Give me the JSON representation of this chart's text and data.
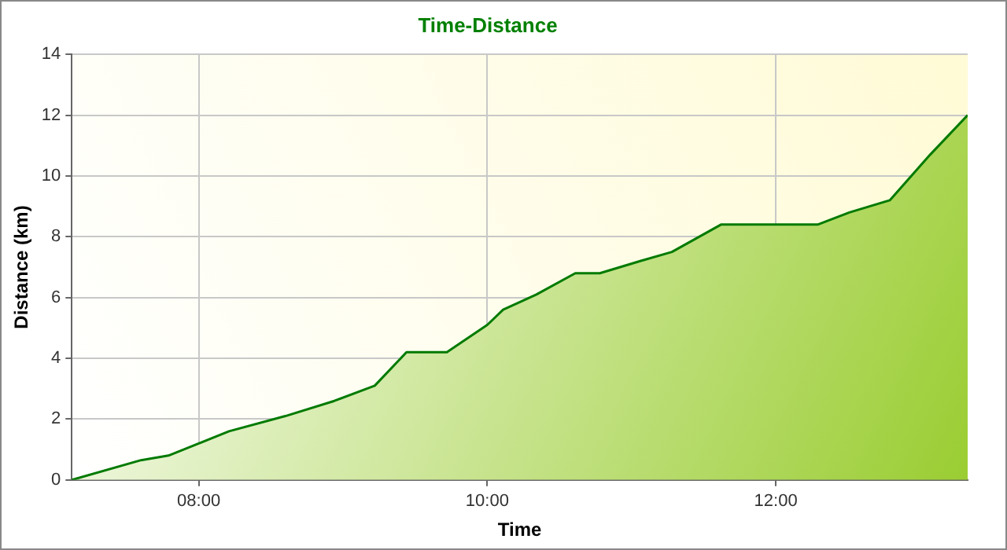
{
  "chart_data": {
    "type": "area",
    "title": "Time-Distance",
    "xlabel": "Time",
    "ylabel": "Distance (km)",
    "x": [
      7.12,
      7.6,
      7.79,
      8.0,
      8.21,
      8.6,
      8.94,
      9.22,
      9.44,
      9.72,
      10.0,
      10.11,
      10.34,
      10.61,
      10.78,
      11.06,
      11.28,
      11.62,
      12.29,
      12.51,
      12.79,
      13.07,
      13.33
    ],
    "series": [
      {
        "color": "#007a00",
        "values": [
          0,
          0.65,
          0.8,
          1.2,
          1.6,
          2.1,
          2.6,
          3.1,
          4.2,
          4.2,
          5.1,
          5.6,
          6.1,
          6.8,
          6.8,
          7.2,
          7.5,
          8.4,
          8.4,
          8.8,
          9.2,
          10.7,
          12.0
        ]
      }
    ],
    "xlim": [
      7.12,
      13.33
    ],
    "xticks": [
      {
        "value": 8,
        "label": "08:00"
      },
      {
        "value": 10,
        "label": "10:00"
      },
      {
        "value": 12,
        "label": "12:00"
      }
    ],
    "ylim": [
      0,
      14
    ],
    "yticks": [
      0,
      2,
      4,
      6,
      8,
      10,
      12,
      14
    ],
    "grid": true,
    "legend": false
  }
}
